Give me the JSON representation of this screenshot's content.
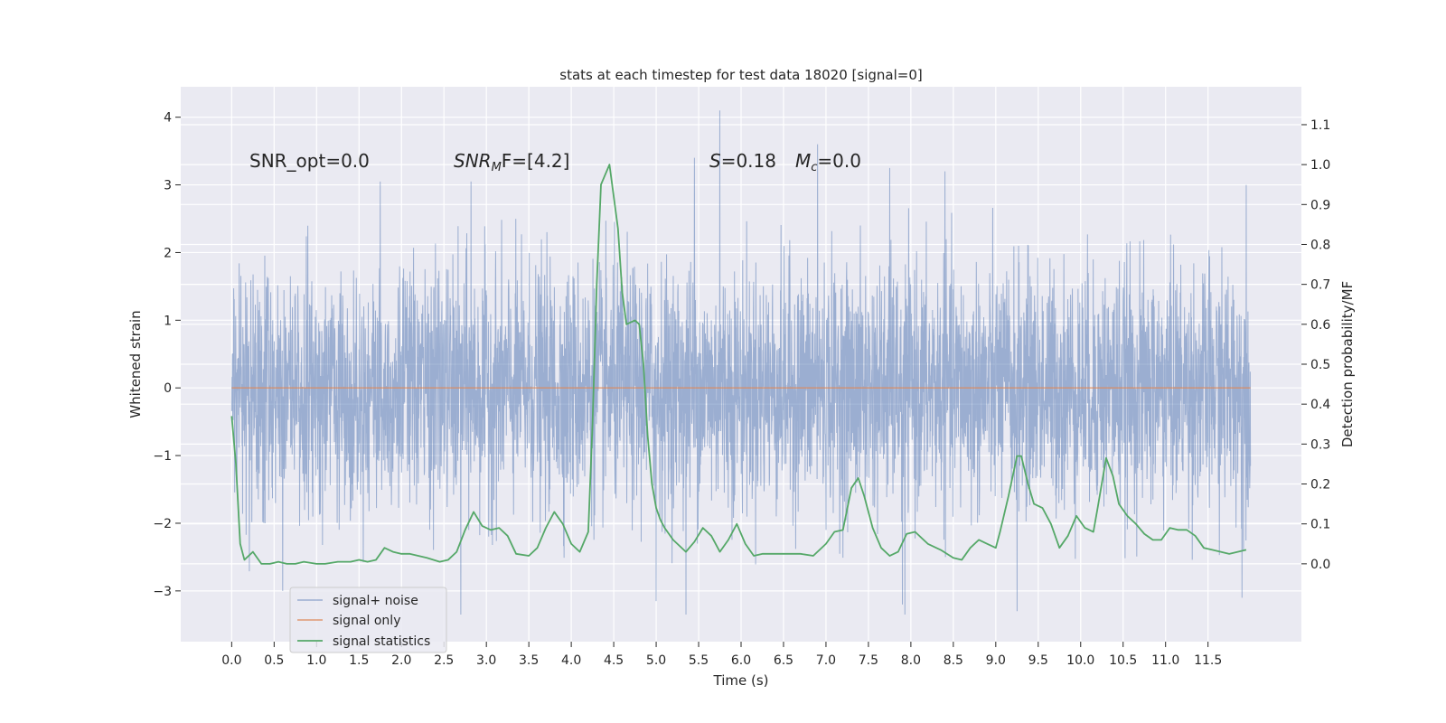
{
  "chart_data": {
    "type": "line",
    "title": "stats at each timestep for test data 18020 [signal=0]",
    "xlabel": "Time (s)",
    "ylabel": "Whitened strain",
    "ylabel_right": "Detection probability/MF",
    "xlim": [
      -0.6,
      12.6
    ],
    "ylim": [
      -3.75,
      4.45
    ],
    "ylim_right": [
      -0.195,
      1.195
    ],
    "xticks": [
      0.0,
      0.5,
      1.0,
      1.5,
      2.0,
      2.5,
      3.0,
      3.5,
      4.0,
      4.5,
      5.0,
      5.5,
      6.0,
      6.5,
      7.0,
      7.5,
      8.0,
      8.5,
      9.0,
      9.5,
      10.0,
      10.5,
      11.0,
      11.5
    ],
    "xtick_labels": [
      "0.0",
      "0.5",
      "1.0",
      "1.5",
      "2.0",
      "2.5",
      "3.0",
      "3.5",
      "4.0",
      "4.5",
      "5.0",
      "5.5",
      "6.0",
      "6.5",
      "7.0",
      "7.5",
      "8.0",
      "8.5",
      "9.0",
      "9.5",
      "10.0",
      "10.5",
      "11.0",
      "11.5"
    ],
    "yticks": [
      -3,
      -2,
      -1,
      0,
      1,
      2,
      3,
      4
    ],
    "ytick_labels": [
      "−3",
      "−2",
      "−1",
      "0",
      "1",
      "2",
      "3",
      "4"
    ],
    "yticks_right": [
      0.0,
      0.1,
      0.2,
      0.3,
      0.4,
      0.5,
      0.6,
      0.7,
      0.8,
      0.9,
      1.0,
      1.1
    ],
    "ytick_right_labels": [
      "0.0",
      "0.1",
      "0.2",
      "0.3",
      "0.4",
      "0.5",
      "0.6",
      "0.7",
      "0.8",
      "0.9",
      "1.0",
      "1.1"
    ],
    "annotations": {
      "snr_opt": "SNR_opt=0.0",
      "snr_mf_main": "SNR",
      "snr_mf_sub": "M",
      "snr_mf_rest": "F=[4.2]",
      "s_main": "S",
      "s_rest": "=0.18",
      "mc_main": "M",
      "mc_sub": "c",
      "mc_rest": "=0.0"
    },
    "series": [
      {
        "name": "signal+ noise",
        "color": "#4c72b0",
        "kind": "noise",
        "t_start": 0.0,
        "t_end": 12.0,
        "sigma": 1.0,
        "peaks": [
          {
            "x": 1.75,
            "y": 3.05
          },
          {
            "x": 2.82,
            "y": 3.05
          },
          {
            "x": 5.45,
            "y": 3.4
          },
          {
            "x": 5.75,
            "y": 4.1
          },
          {
            "x": 6.9,
            "y": 3.6
          },
          {
            "x": 7.75,
            "y": 3.25
          },
          {
            "x": 8.4,
            "y": 3.2
          },
          {
            "x": 11.95,
            "y": 3.0
          },
          {
            "x": 0.6,
            "y": -3.0
          },
          {
            "x": 2.7,
            "y": -3.35
          },
          {
            "x": 5.0,
            "y": -3.15
          },
          {
            "x": 5.35,
            "y": -3.35
          },
          {
            "x": 7.9,
            "y": -3.2
          },
          {
            "x": 7.93,
            "y": -3.35
          },
          {
            "x": 9.25,
            "y": -3.3
          },
          {
            "x": 11.9,
            "y": -3.1
          }
        ]
      },
      {
        "name": "signal only",
        "color": "#dd8452",
        "kind": "flat",
        "x": [
          0.0,
          12.0
        ],
        "values": [
          0.0,
          0.0
        ]
      },
      {
        "name": "signal statistics",
        "color": "#55a868",
        "axis": "right",
        "kind": "line",
        "x": [
          0.0,
          0.05,
          0.1,
          0.15,
          0.25,
          0.35,
          0.45,
          0.55,
          0.65,
          0.75,
          0.85,
          1.0,
          1.1,
          1.25,
          1.4,
          1.5,
          1.6,
          1.7,
          1.8,
          1.9,
          2.0,
          2.1,
          2.3,
          2.45,
          2.55,
          2.65,
          2.75,
          2.85,
          2.95,
          3.05,
          3.15,
          3.25,
          3.35,
          3.5,
          3.6,
          3.7,
          3.8,
          3.9,
          4.0,
          4.1,
          4.2,
          4.25,
          4.3,
          4.35,
          4.45,
          4.5,
          4.55,
          4.6,
          4.65,
          4.75,
          4.8,
          4.85,
          4.9,
          4.95,
          5.0,
          5.05,
          5.1,
          5.2,
          5.35,
          5.45,
          5.55,
          5.65,
          5.75,
          5.85,
          5.95,
          6.05,
          6.15,
          6.25,
          6.4,
          6.55,
          6.7,
          6.85,
          7.0,
          7.1,
          7.2,
          7.3,
          7.38,
          7.45,
          7.55,
          7.65,
          7.75,
          7.85,
          7.95,
          8.05,
          8.2,
          8.35,
          8.5,
          8.6,
          8.7,
          8.8,
          8.9,
          9.0,
          9.05,
          9.15,
          9.25,
          9.3,
          9.38,
          9.45,
          9.55,
          9.65,
          9.75,
          9.85,
          9.95,
          10.05,
          10.15,
          10.2,
          10.3,
          10.38,
          10.45,
          10.55,
          10.65,
          10.75,
          10.85,
          10.95,
          11.05,
          11.15,
          11.25,
          11.35,
          11.45,
          11.55,
          11.65,
          11.75,
          11.85,
          11.95
        ],
        "values": [
          0.37,
          0.25,
          0.05,
          0.01,
          0.03,
          0.0,
          0.0,
          0.005,
          0.0,
          0.0,
          0.005,
          0.0,
          0.0,
          0.005,
          0.005,
          0.01,
          0.005,
          0.01,
          0.04,
          0.03,
          0.025,
          0.025,
          0.015,
          0.005,
          0.01,
          0.03,
          0.085,
          0.13,
          0.095,
          0.085,
          0.09,
          0.07,
          0.025,
          0.02,
          0.04,
          0.09,
          0.13,
          0.1,
          0.05,
          0.03,
          0.08,
          0.35,
          0.7,
          0.95,
          1.0,
          0.92,
          0.84,
          0.68,
          0.6,
          0.61,
          0.6,
          0.5,
          0.32,
          0.2,
          0.14,
          0.11,
          0.09,
          0.06,
          0.03,
          0.055,
          0.09,
          0.07,
          0.03,
          0.06,
          0.1,
          0.05,
          0.02,
          0.025,
          0.025,
          0.025,
          0.025,
          0.02,
          0.05,
          0.08,
          0.085,
          0.19,
          0.215,
          0.17,
          0.09,
          0.04,
          0.02,
          0.03,
          0.075,
          0.08,
          0.05,
          0.035,
          0.015,
          0.01,
          0.04,
          0.06,
          0.05,
          0.04,
          0.08,
          0.17,
          0.27,
          0.27,
          0.2,
          0.15,
          0.14,
          0.1,
          0.04,
          0.07,
          0.12,
          0.09,
          0.08,
          0.14,
          0.265,
          0.22,
          0.15,
          0.12,
          0.1,
          0.075,
          0.06,
          0.06,
          0.09,
          0.085,
          0.085,
          0.07,
          0.04,
          0.035,
          0.03,
          0.025,
          0.03,
          0.035
        ]
      }
    ],
    "legend_position": "lower-left"
  }
}
